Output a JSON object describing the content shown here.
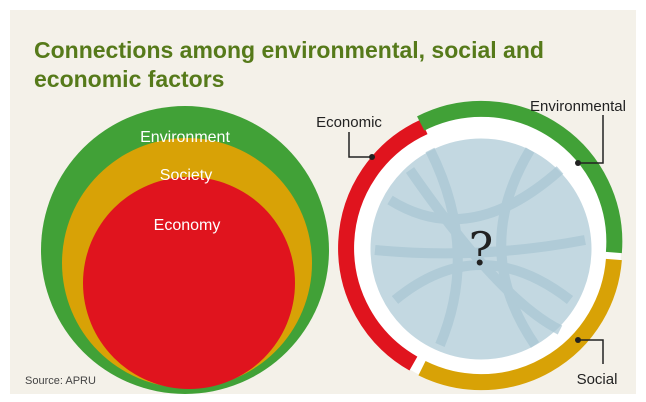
{
  "title": {
    "line1": "Connections among environmental, social and",
    "line2": "economic factors"
  },
  "source": "Source: APRU",
  "nested": {
    "outer": "Environment",
    "middle": "Society",
    "inner": "Economy"
  },
  "ring": {
    "economic": "Economic",
    "environmental": "Environmental",
    "social": "Social",
    "center": "?"
  },
  "colors": {
    "background": "#f4f1e9",
    "title": "#567a1a",
    "green": "#41a137",
    "gold": "#d8a206",
    "red": "#e0141e",
    "center_fill": "#c3d8e1",
    "center_lines": "#9ebcca"
  }
}
